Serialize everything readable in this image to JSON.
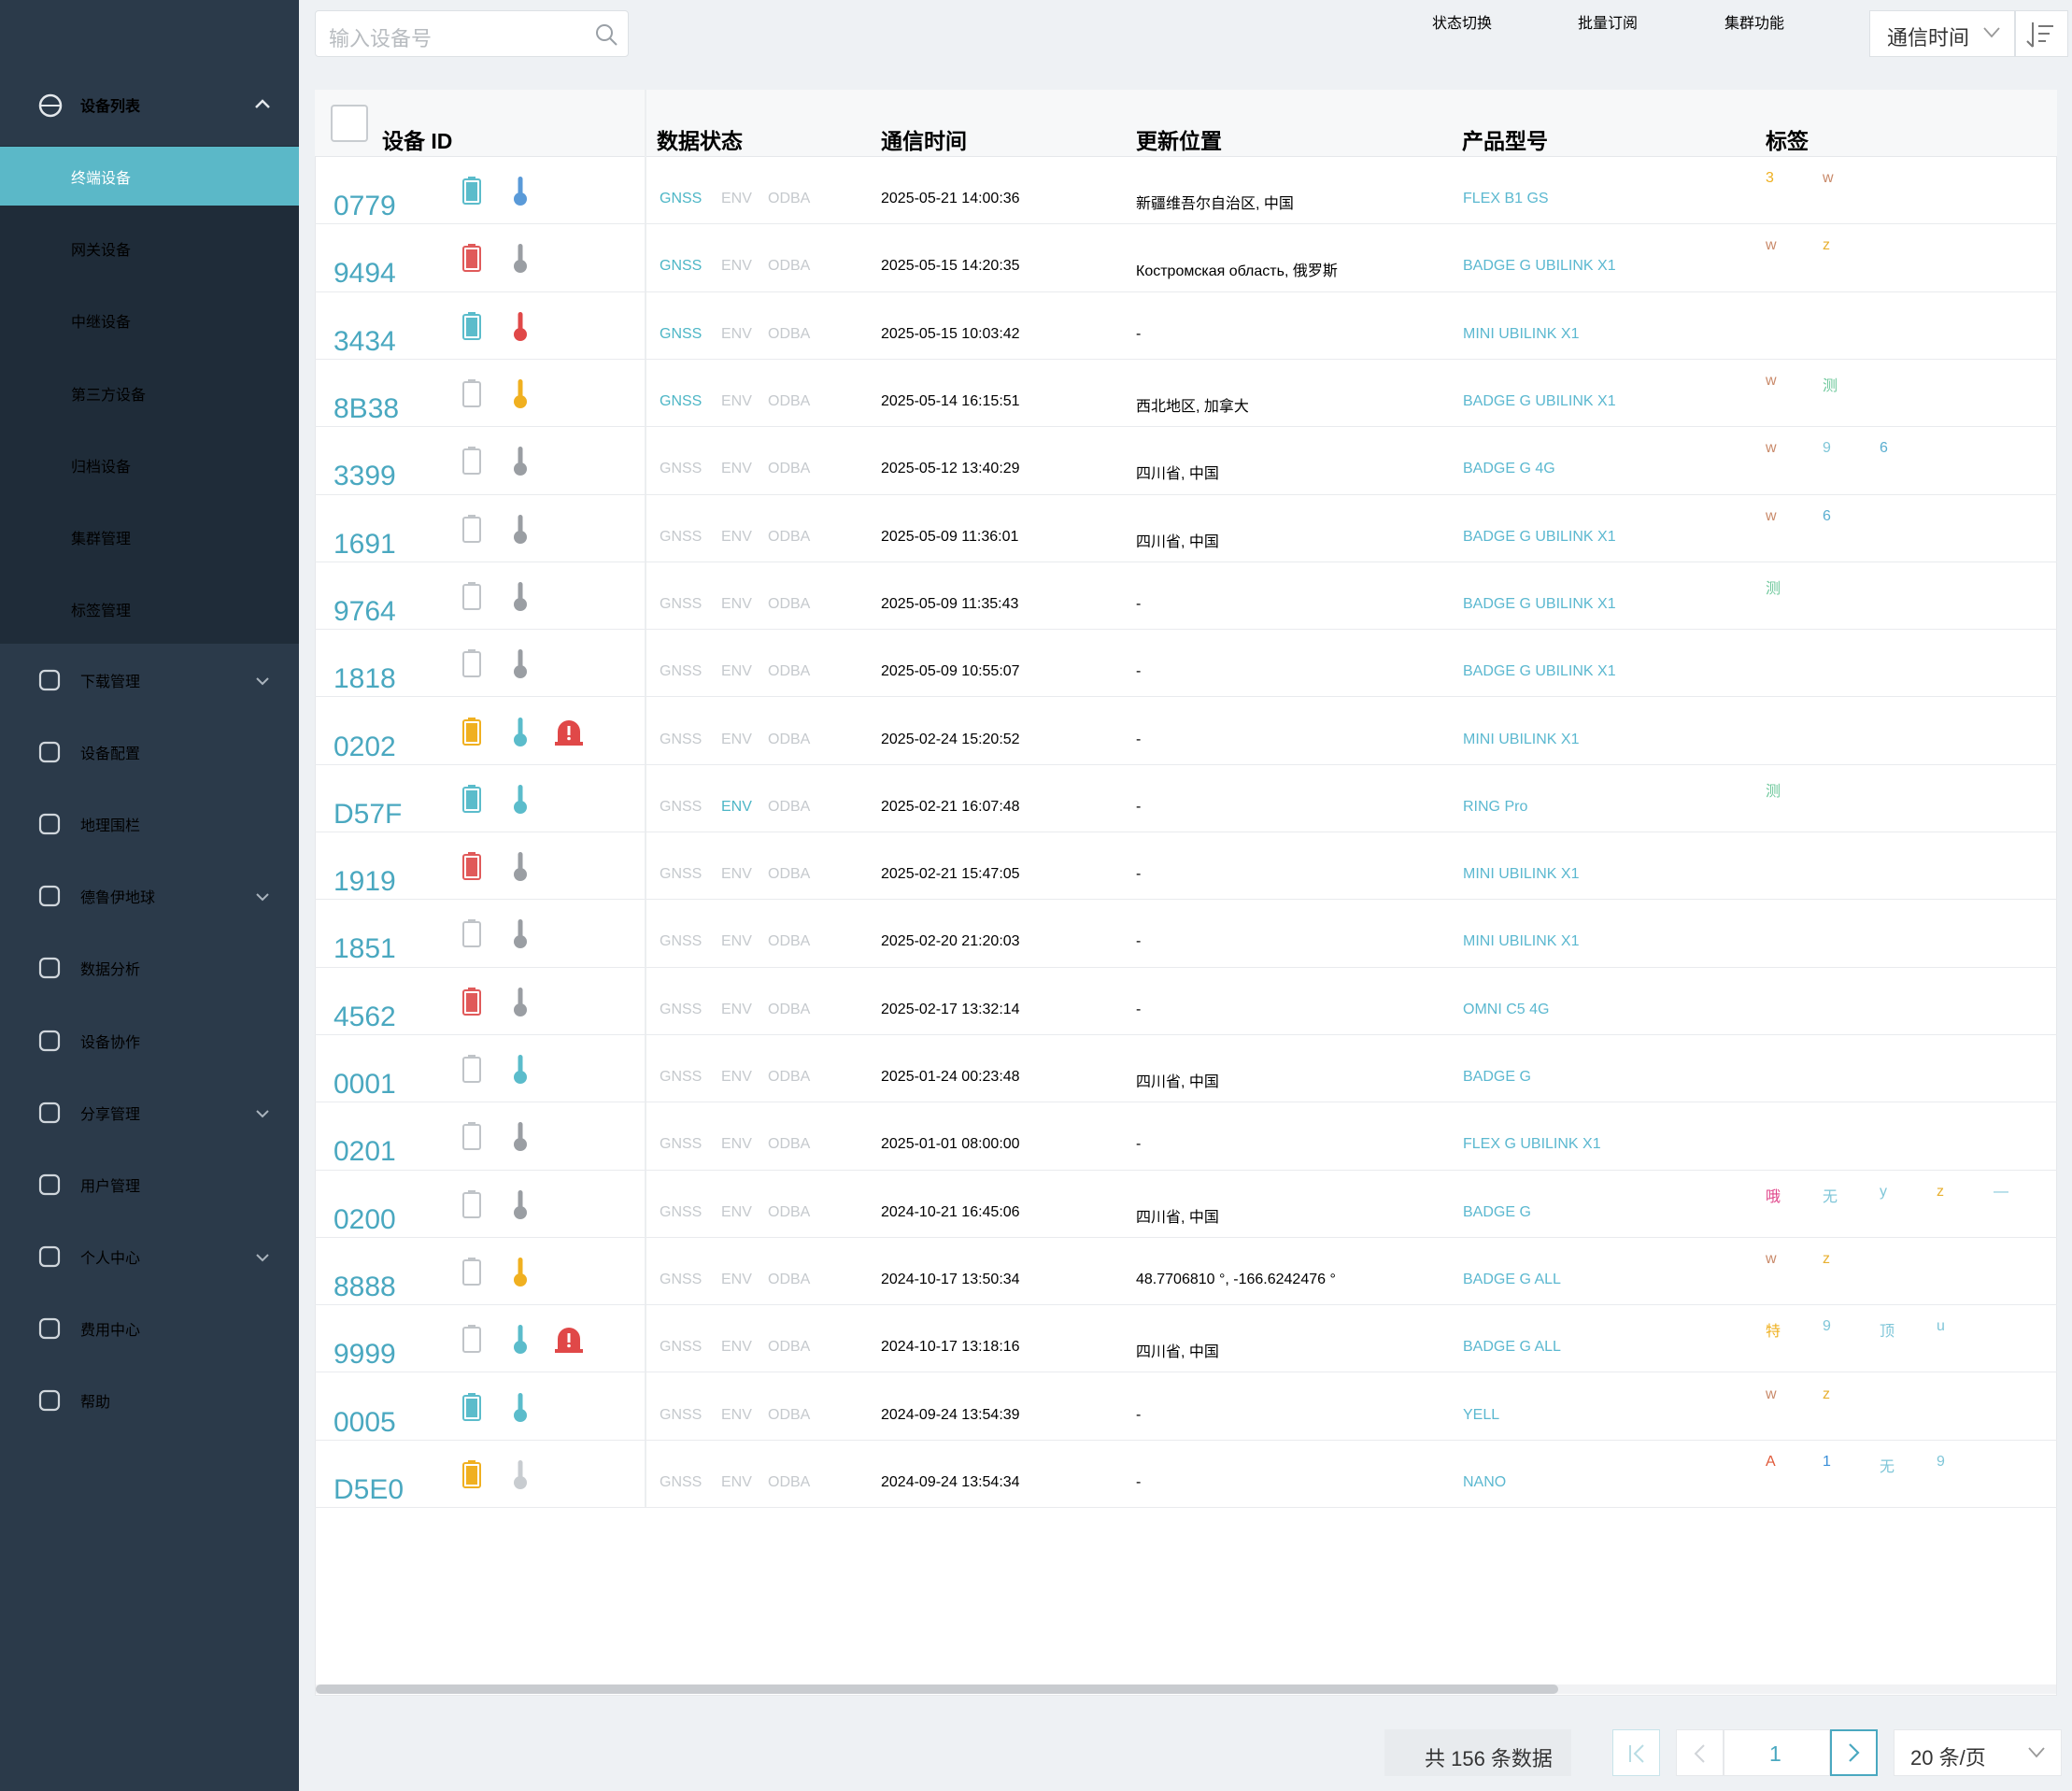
{
  "sidebar": {
    "group": "设备列表",
    "sub": [
      "终端设备",
      "网关设备",
      "中继设备",
      "第三方设备",
      "归档设备",
      "集群管理",
      "标签管理"
    ],
    "active_sub": 0,
    "menu": [
      {
        "text": "下载管理",
        "expand": true
      },
      {
        "text": "设备配置",
        "expand": false
      },
      {
        "text": "地理围栏",
        "expand": false
      },
      {
        "text": "德鲁伊地球",
        "expand": true
      },
      {
        "text": "数据分析",
        "expand": false
      },
      {
        "text": "设备协作",
        "expand": false
      },
      {
        "text": "分享管理",
        "expand": true
      },
      {
        "text": "用户管理",
        "expand": false
      },
      {
        "text": "个人中心",
        "expand": true
      },
      {
        "text": "费用中心",
        "expand": false
      },
      {
        "text": "帮助",
        "expand": false
      }
    ]
  },
  "toolbar": {
    "search_placeholder": "输入设备号",
    "buttons": [
      "状态切换",
      "批量订阅",
      "集群功能"
    ],
    "sort_select": "通信时间"
  },
  "table": {
    "headers": [
      "设备 ID",
      "数据状态",
      "通信时间",
      "更新位置",
      "产品型号",
      "标签"
    ],
    "status_labels": [
      "GNSS",
      "ENV",
      "ODBA"
    ],
    "rows": [
      {
        "id": "0779",
        "battery": "#5bbccb",
        "temp": "#5a9ad8",
        "alert": false,
        "status_colors": [
          "#4db6c6",
          "#c5c9cd",
          "#c5c9cd"
        ],
        "time": "2025-05-21 14:00:36",
        "location": "新疆维吾尔自治区, 中国",
        "product": "FLEX B1 GS",
        "tags": [
          {
            "text": "3",
            "color": "#efb020"
          },
          {
            "text": "w",
            "color": "#c98a6a"
          }
        ]
      },
      {
        "id": "9494",
        "battery": "#e05a5a",
        "temp": "#9a9ea3",
        "alert": false,
        "status_colors": [
          "#4db6c6",
          "#c5c9cd",
          "#c5c9cd"
        ],
        "time": "2025-05-15 14:20:35",
        "location": "Костромская область, 俄罗斯",
        "product": "BADGE G UBILINK X1",
        "tags": [
          {
            "text": "w",
            "color": "#c98a6a"
          },
          {
            "text": "z",
            "color": "#e8b030"
          }
        ]
      },
      {
        "id": "3434",
        "battery": "#5bbccb",
        "temp": "#e04848",
        "alert": false,
        "status_colors": [
          "#4db6c6",
          "#c5c9cd",
          "#c5c9cd"
        ],
        "time": "2025-05-15 10:03:42",
        "location": "-",
        "product": "MINI UBILINK X1",
        "tags": []
      },
      {
        "id": "8B38",
        "battery": "none",
        "temp": "#f0b020",
        "alert": false,
        "status_colors": [
          "#4db6c6",
          "#c5c9cd",
          "#c5c9cd"
        ],
        "time": "2025-05-14 16:15:51",
        "location": "西北地区, 加拿大",
        "product": "BADGE G UBILINK X1",
        "tags": [
          {
            "text": "w",
            "color": "#c98a6a"
          },
          {
            "text": "测",
            "color": "#6cc79a"
          }
        ]
      },
      {
        "id": "3399",
        "battery": "none",
        "temp": "#9a9ea3",
        "alert": false,
        "status_colors": [
          "#c5c9cd",
          "#c5c9cd",
          "#c5c9cd"
        ],
        "time": "2025-05-12 13:40:29",
        "location": "四川省, 中国",
        "product": "BADGE G 4G",
        "tags": [
          {
            "text": "w",
            "color": "#c98a6a"
          },
          {
            "text": "9",
            "color": "#7fc6d8"
          },
          {
            "text": "6",
            "color": "#5aaed0"
          }
        ]
      },
      {
        "id": "1691",
        "battery": "none",
        "temp": "#9a9ea3",
        "alert": false,
        "status_colors": [
          "#c5c9cd",
          "#c5c9cd",
          "#c5c9cd"
        ],
        "time": "2025-05-09 11:36:01",
        "location": "四川省, 中国",
        "product": "BADGE G UBILINK X1",
        "tags": [
          {
            "text": "w",
            "color": "#c98a6a"
          },
          {
            "text": "6",
            "color": "#5aaed0"
          }
        ]
      },
      {
        "id": "9764",
        "battery": "none",
        "temp": "#9a9ea3",
        "alert": false,
        "status_colors": [
          "#c5c9cd",
          "#c5c9cd",
          "#c5c9cd"
        ],
        "time": "2025-05-09 11:35:43",
        "location": "-",
        "product": "BADGE G UBILINK X1",
        "tags": [
          {
            "text": "测",
            "color": "#6cc79a"
          }
        ]
      },
      {
        "id": "1818",
        "battery": "none",
        "temp": "#9a9ea3",
        "alert": false,
        "status_colors": [
          "#c5c9cd",
          "#c5c9cd",
          "#c5c9cd"
        ],
        "time": "2025-05-09 10:55:07",
        "location": "-",
        "product": "BADGE G UBILINK X1",
        "tags": []
      },
      {
        "id": "0202",
        "battery": "#f0b020",
        "temp": "#5bbccb",
        "alert": true,
        "status_colors": [
          "#c5c9cd",
          "#c5c9cd",
          "#c5c9cd"
        ],
        "time": "2025-02-24 15:20:52",
        "location": "-",
        "product": "MINI UBILINK X1",
        "tags": []
      },
      {
        "id": "D57F",
        "battery": "#5bbccb",
        "temp": "#5bbccb",
        "alert": false,
        "status_colors": [
          "#c5c9cd",
          "#4db6c6",
          "#c5c9cd"
        ],
        "time": "2025-02-21 16:07:48",
        "location": "-",
        "product": "RING Pro",
        "tags": [
          {
            "text": "测",
            "color": "#6cc79a"
          }
        ]
      },
      {
        "id": "1919",
        "battery": "#e05a5a",
        "temp": "#9a9ea3",
        "alert": false,
        "status_colors": [
          "#c5c9cd",
          "#c5c9cd",
          "#c5c9cd"
        ],
        "time": "2025-02-21 15:47:05",
        "location": "-",
        "product": "MINI UBILINK X1",
        "tags": []
      },
      {
        "id": "1851",
        "battery": "none",
        "temp": "#9a9ea3",
        "alert": false,
        "status_colors": [
          "#c5c9cd",
          "#c5c9cd",
          "#c5c9cd"
        ],
        "time": "2025-02-20 21:20:03",
        "location": "-",
        "product": "MINI UBILINK X1",
        "tags": []
      },
      {
        "id": "4562",
        "battery": "#e05a5a",
        "temp": "#9a9ea3",
        "alert": false,
        "status_colors": [
          "#c5c9cd",
          "#c5c9cd",
          "#c5c9cd"
        ],
        "time": "2025-02-17 13:32:14",
        "location": "-",
        "product": "OMNI C5 4G",
        "tags": []
      },
      {
        "id": "0001",
        "battery": "none",
        "temp": "#5bbccb",
        "alert": false,
        "status_colors": [
          "#c5c9cd",
          "#c5c9cd",
          "#c5c9cd"
        ],
        "time": "2025-01-24 00:23:48",
        "location": "四川省, 中国",
        "product": "BADGE G",
        "tags": []
      },
      {
        "id": "0201",
        "battery": "none",
        "temp": "#9a9ea3",
        "alert": false,
        "status_colors": [
          "#c5c9cd",
          "#c5c9cd",
          "#c5c9cd"
        ],
        "time": "2025-01-01 08:00:00",
        "location": "-",
        "product": "FLEX G UBILINK X1",
        "tags": []
      },
      {
        "id": "0200",
        "battery": "none",
        "temp": "#9a9ea3",
        "alert": false,
        "status_colors": [
          "#c5c9cd",
          "#c5c9cd",
          "#c5c9cd"
        ],
        "time": "2024-10-21 16:45:06",
        "location": "四川省, 中国",
        "product": "BADGE G",
        "tags": [
          {
            "text": "哦",
            "color": "#e0458a"
          },
          {
            "text": "无",
            "color": "#7fc6d8"
          },
          {
            "text": "y",
            "color": "#7fc6d8"
          },
          {
            "text": "z",
            "color": "#e8b030"
          },
          {
            "text": "—",
            "color": "#7fc6d8"
          }
        ]
      },
      {
        "id": "8888",
        "battery": "none",
        "temp": "#f0b020",
        "alert": false,
        "status_colors": [
          "#c5c9cd",
          "#c5c9cd",
          "#c5c9cd"
        ],
        "time": "2024-10-17 13:50:34",
        "location": "48.7706810 °, -166.6242476 °",
        "product": "BADGE G ALL",
        "tags": [
          {
            "text": "w",
            "color": "#c98a6a"
          },
          {
            "text": "z",
            "color": "#e8b030"
          }
        ]
      },
      {
        "id": "9999",
        "battery": "none",
        "temp": "#5bbccb",
        "alert": true,
        "status_colors": [
          "#c5c9cd",
          "#c5c9cd",
          "#c5c9cd"
        ],
        "time": "2024-10-17 13:18:16",
        "location": "四川省, 中国",
        "product": "BADGE G ALL",
        "tags": [
          {
            "text": "特",
            "color": "#efb020"
          },
          {
            "text": "9",
            "color": "#7fc6d8"
          },
          {
            "text": "顶",
            "color": "#7fc6d8"
          },
          {
            "text": "u",
            "color": "#7fc6d8"
          }
        ]
      },
      {
        "id": "0005",
        "battery": "#5bbccb",
        "temp": "#5bbccb",
        "alert": false,
        "status_colors": [
          "#c5c9cd",
          "#c5c9cd",
          "#c5c9cd"
        ],
        "time": "2024-09-24 13:54:39",
        "location": "-",
        "product": "YELL",
        "tags": [
          {
            "text": "w",
            "color": "#c98a6a"
          },
          {
            "text": "z",
            "color": "#e8b030"
          }
        ]
      },
      {
        "id": "D5E0",
        "battery": "#f0b020",
        "temp": "#c8ccd0",
        "alert": false,
        "status_colors": [
          "#c5c9cd",
          "#c5c9cd",
          "#c5c9cd"
        ],
        "time": "2024-09-24 13:54:34",
        "location": "-",
        "product": "NANO",
        "tags": [
          {
            "text": "A",
            "color": "#e05a3a"
          },
          {
            "text": "1",
            "color": "#3a8fd8"
          },
          {
            "text": "无",
            "color": "#7fc6d8"
          },
          {
            "text": "9",
            "color": "#7fc6d8"
          }
        ]
      }
    ]
  },
  "pagination": {
    "total": "共 156 条数据",
    "page": "1",
    "page_size": "20 条/页"
  }
}
